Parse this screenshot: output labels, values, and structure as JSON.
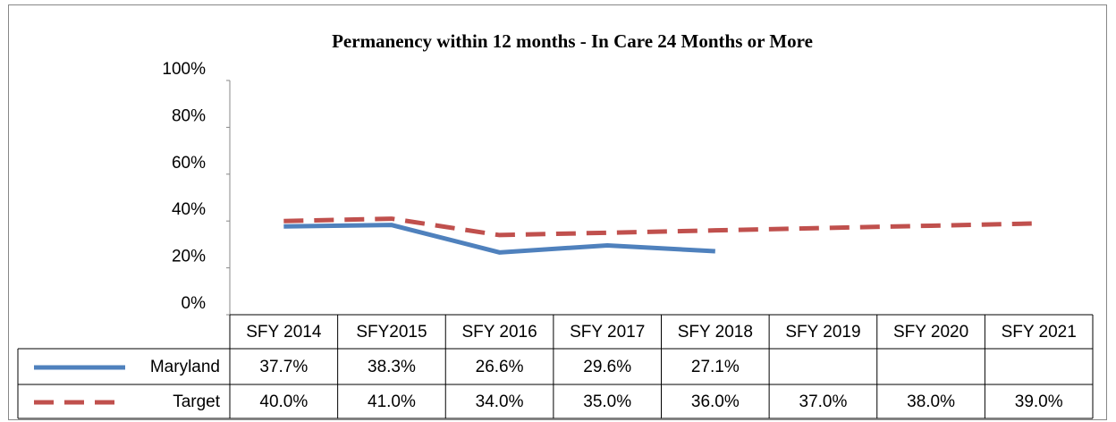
{
  "chart_data": {
    "type": "line",
    "title": "Permanency within 12 months - In Care 24 Months or More",
    "categories": [
      "SFY 2014",
      "SFY2015",
      "SFY 2016",
      "SFY 2017",
      "SFY 2018",
      "SFY 2019",
      "SFY 2020",
      "SFY 2021"
    ],
    "series": [
      {
        "name": "Maryland",
        "color": "#4f81bd",
        "dashed": false,
        "values": [
          37.7,
          38.3,
          26.6,
          29.6,
          27.1,
          null,
          null,
          null
        ],
        "value_labels": [
          "37.7%",
          "38.3%",
          "26.6%",
          "29.6%",
          "27.1%",
          null,
          null,
          null
        ]
      },
      {
        "name": "Target",
        "color": "#c0504d",
        "dashed": true,
        "values": [
          40,
          41,
          34,
          35,
          36,
          37,
          38,
          39
        ],
        "value_labels": [
          "40.0%",
          "41.0%",
          "34.0%",
          "35.0%",
          "36.0%",
          "37.0%",
          "38.0%",
          "39.0%"
        ]
      }
    ],
    "ylim": [
      0,
      100
    ],
    "yticks": [
      {
        "value": 0,
        "label": "0%"
      },
      {
        "value": 20,
        "label": "20%"
      },
      {
        "value": 40,
        "label": "40%"
      },
      {
        "value": 60,
        "label": "60%"
      },
      {
        "value": 80,
        "label": "80%"
      },
      {
        "value": 100,
        "label": "100%"
      }
    ]
  }
}
